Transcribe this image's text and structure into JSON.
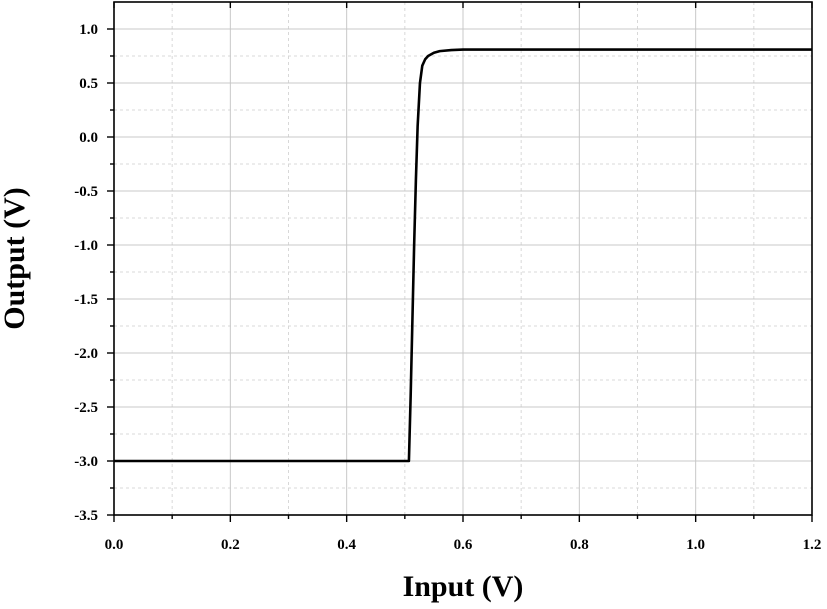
{
  "chart_data": {
    "type": "line",
    "title": "",
    "xlabel": "Input (V)",
    "ylabel": "Output (V)",
    "xlim": [
      0.0,
      1.2
    ],
    "ylim": [
      -3.5,
      1.25
    ],
    "x_ticks": [
      "0.0",
      "0.2",
      "0.4",
      "0.6",
      "0.8",
      "1.0",
      "1.2"
    ],
    "y_ticks": [
      "1.0",
      "0.5",
      "0.0",
      "-0.5",
      "-1.0",
      "-1.5",
      "-2.0",
      "-2.5",
      "-3.0",
      "-3.5"
    ],
    "grid": true,
    "legend": "none",
    "line_color": "#000000",
    "series": [
      {
        "x": [
          0.0,
          0.1,
          0.2,
          0.3,
          0.4,
          0.5,
          0.507,
          0.51,
          0.513,
          0.516,
          0.519,
          0.522,
          0.526,
          0.53,
          0.535,
          0.54,
          0.55,
          0.56,
          0.58,
          0.6,
          0.65,
          0.7,
          0.8,
          0.9,
          1.0,
          1.1,
          1.2
        ],
        "y": [
          -3.0,
          -3.0,
          -3.0,
          -3.0,
          -3.0,
          -3.0,
          -3.0,
          -2.4,
          -1.7,
          -1.0,
          -0.4,
          0.1,
          0.5,
          0.66,
          0.72,
          0.75,
          0.78,
          0.795,
          0.805,
          0.81,
          0.81,
          0.81,
          0.81,
          0.81,
          0.81,
          0.81,
          0.81
        ]
      }
    ]
  }
}
